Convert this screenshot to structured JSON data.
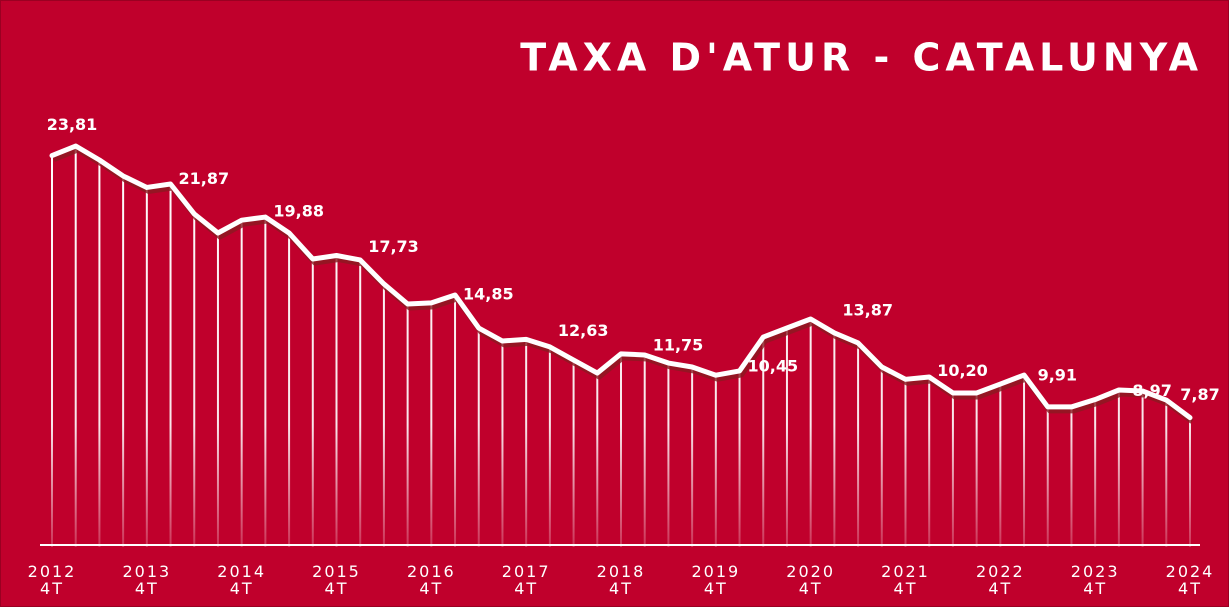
{
  "chart_data": {
    "type": "line",
    "title": "TAXA D'ATUR - CATALUNYA",
    "categories": [
      "2012\n4T",
      null,
      null,
      null,
      "2013\n4T",
      null,
      null,
      null,
      "2014\n4T",
      null,
      null,
      null,
      "2015\n4T",
      null,
      null,
      null,
      "2016\n4T",
      null,
      null,
      null,
      "2017\n4T",
      null,
      null,
      null,
      "2018\n4T",
      null,
      null,
      null,
      "2019\n4T",
      null,
      null,
      null,
      "2020\n4T",
      null,
      null,
      null,
      "2021\n4T",
      null,
      null,
      null,
      "2022\n4T",
      null,
      null,
      null,
      "2023\n4T",
      null,
      null,
      null,
      "2024\n4T"
    ],
    "series": [
      {
        "name": "Taxa d'atur",
        "color": "#ffffff",
        "values": [
          23.81,
          24.39,
          23.54,
          22.57,
          21.87,
          22.08,
          20.26,
          19.1,
          19.88,
          20.07,
          19.1,
          17.52,
          17.73,
          17.46,
          16.0,
          14.78,
          14.85,
          15.33,
          13.32,
          12.53,
          12.63,
          12.17,
          11.37,
          10.58,
          11.75,
          11.68,
          11.19,
          10.95,
          10.45,
          10.71,
          12.77,
          13.32,
          13.87,
          13.02,
          12.41,
          10.95,
          10.2,
          10.34,
          9.37,
          9.37,
          9.91,
          10.46,
          8.52,
          8.52,
          8.97,
          9.55,
          9.49,
          8.94,
          7.87
        ],
        "value_labels": [
          "23,81",
          null,
          null,
          null,
          "21,87",
          null,
          null,
          null,
          "19,88",
          null,
          null,
          null,
          "17,73",
          null,
          null,
          null,
          "14,85",
          null,
          null,
          null,
          "12,63",
          null,
          null,
          null,
          "11,75",
          null,
          null,
          null,
          "10,45",
          null,
          null,
          null,
          "13,87",
          null,
          null,
          null,
          "10,20",
          null,
          null,
          null,
          "9,91",
          null,
          null,
          null,
          "8,97",
          null,
          null,
          null,
          "7,87"
        ]
      }
    ],
    "ylim": [
      0,
      27
    ],
    "grid": false
  }
}
